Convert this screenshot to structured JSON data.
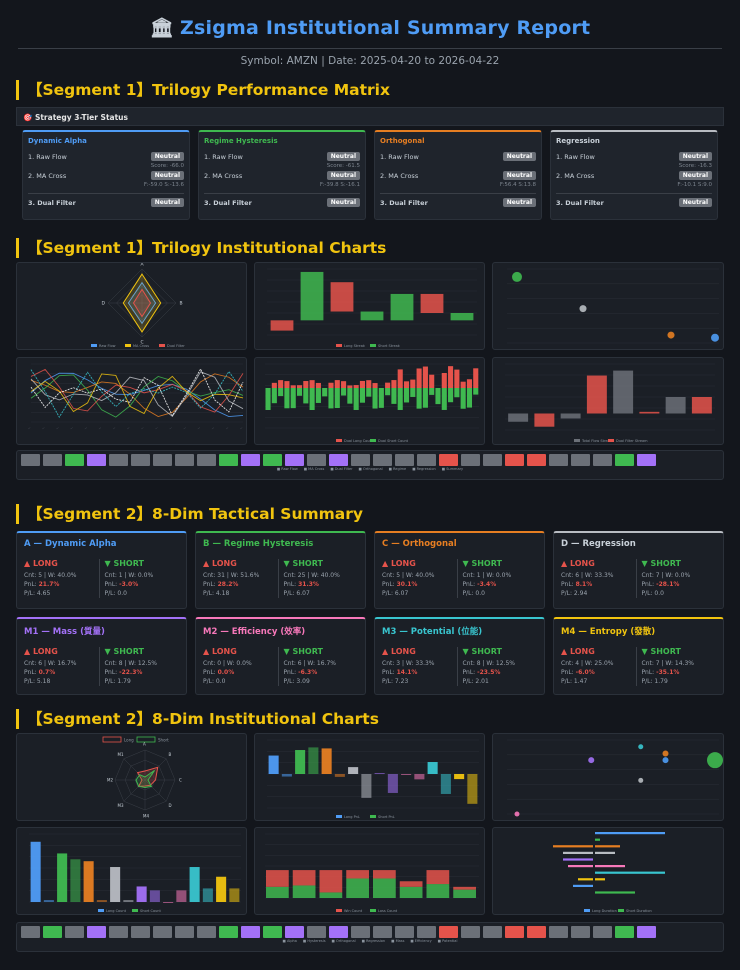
{
  "header": {
    "icon": "🏛",
    "title": "Zsigma Institutional Summary Report",
    "meta": "Symbol: AMZN | Date: 2025-04-20 to 2026-04-22"
  },
  "colors": {
    "background": "#13161c",
    "panel": "#1b1f26",
    "accent_title": "#4f9cf5",
    "segment_title": "#f1c40f",
    "long": "#e5534b",
    "short": "#3fb950",
    "neutral_badge": "#6b7078"
  },
  "seg1": {
    "title": "【Segment 1】Trilogy Performance Matrix",
    "status_bar": "🎯 Strategy 3-Tier Status",
    "tiers": [
      {
        "name": "Dynamic Alpha",
        "color": "#4f9cf5",
        "raw_label": "1. Raw Flow",
        "raw_status": "Neutral",
        "raw_sub": "Score: -66.0",
        "ma_label": "2. MA Cross",
        "ma_status": "Neutral",
        "ma_sub": "F:-59.0 S:-13.6",
        "dual_label": "3. Dual Filter",
        "dual_status": "Neutral"
      },
      {
        "name": "Regime Hysteresis",
        "color": "#3fb950",
        "raw_label": "1. Raw Flow",
        "raw_status": "Neutral",
        "raw_sub": "Score: -61.5",
        "ma_label": "2. MA Cross",
        "ma_status": "Neutral",
        "ma_sub": "F:-39.8 S:-16.1",
        "dual_label": "3. Dual Filter",
        "dual_status": "Neutral"
      },
      {
        "name": "Orthogonal",
        "color": "#e67e22",
        "raw_label": "1. Raw Flow",
        "raw_status": "Neutral",
        "raw_sub": "",
        "ma_label": "2. MA Cross",
        "ma_status": "Neutral",
        "ma_sub": "F:56.4 S:13.8",
        "dual_label": "3. Dual Filter",
        "dual_status": "Neutral"
      },
      {
        "name": "Regression",
        "color": "#b8bcc2",
        "raw_label": "1. Raw Flow",
        "raw_status": "Neutral",
        "raw_sub": "Score: -16.3",
        "ma_label": "2. MA Cross",
        "ma_status": "Neutral",
        "ma_sub": "F:-10.1 S:9.0",
        "dual_label": "3. Dual Filter",
        "dual_status": "Neutral"
      }
    ],
    "charts_title": "【Segment 1】Trilogy Institutional Charts"
  },
  "seg2": {
    "title": "【Segment 2】8-Dim Tactical Summary",
    "long_label": "▲ LONG",
    "short_label": "▼ SHORT",
    "cards": [
      {
        "name": "A — Dynamic Alpha",
        "color": "#4f9cf5",
        "long": {
          "cnt": "Cnt: 5 | W: 40.0%",
          "pnl": "21.7%",
          "pl": "P/L: 4.65"
        },
        "short": {
          "cnt": "Cnt: 1 | W: 0.0%",
          "pnl": "-3.0%",
          "pl": "P/L: 0.0"
        }
      },
      {
        "name": "B — Regime Hysteresis",
        "color": "#3fb950",
        "long": {
          "cnt": "Cnt: 31 | W: 51.6%",
          "pnl": "28.2%",
          "pl": "P/L: 4.18"
        },
        "short": {
          "cnt": "Cnt: 25 | W: 40.0%",
          "pnl": "31.3%",
          "pl": "P/L: 6.07"
        }
      },
      {
        "name": "C — Orthogonal",
        "color": "#e67e22",
        "long": {
          "cnt": "Cnt: 5 | W: 40.0%",
          "pnl": "30.1%",
          "pl": "P/L: 6.07"
        },
        "short": {
          "cnt": "Cnt: 1 | W: 0.0%",
          "pnl": "-3.4%",
          "pl": "P/L: 0.0"
        }
      },
      {
        "name": "D — Regression",
        "color": "#b8bcc2",
        "long": {
          "cnt": "Cnt: 6 | W: 33.3%",
          "pnl": "8.1%",
          "pl": "P/L: 2.94"
        },
        "short": {
          "cnt": "Cnt: 7 | W: 0.0%",
          "pnl": "-28.1%",
          "pl": "P/L: 0.0"
        }
      },
      {
        "name": "M1 — Mass (質量)",
        "color": "#a371f7",
        "long": {
          "cnt": "Cnt: 6 | W: 16.7%",
          "pnl": "0.7%",
          "pl": "P/L: 5.18"
        },
        "short": {
          "cnt": "Cnt: 8 | W: 12.5%",
          "pnl": "-22.3%",
          "pl": "P/L: 1.79"
        }
      },
      {
        "name": "M2 — Efficiency (效率)",
        "color": "#f778ba",
        "long": {
          "cnt": "Cnt: 0 | W: 0.0%",
          "pnl": "0.0%",
          "pl": "P/L: 0.0"
        },
        "short": {
          "cnt": "Cnt: 6 | W: 16.7%",
          "pnl": "-6.3%",
          "pl": "P/L: 3.09"
        }
      },
      {
        "name": "M3 — Potential (位能)",
        "color": "#39c5cf",
        "long": {
          "cnt": "Cnt: 3 | W: 33.3%",
          "pnl": "14.1%",
          "pl": "P/L: 7.23"
        },
        "short": {
          "cnt": "Cnt: 8 | W: 12.5%",
          "pnl": "-23.5%",
          "pl": "P/L: 2.01"
        }
      },
      {
        "name": "M4 — Entropy (發散)",
        "color": "#f1c40f",
        "long": {
          "cnt": "Cnt: 4 | W: 25.0%",
          "pnl": "-6.0%",
          "pl": "P/L: 1.47"
        },
        "short": {
          "cnt": "Cnt: 7 | W: 14.3%",
          "pnl": "-35.1%",
          "pl": "P/L: 1.79"
        }
      }
    ],
    "charts_title": "【Segment 2】8-Dim Institutional Charts"
  },
  "chart_data": [
    {
      "type": "radar",
      "axes": [
        "A",
        "B",
        "C",
        "D"
      ],
      "series": [
        {
          "name": "Raw Flow",
          "color": "#4f9cf5",
          "values": [
            60,
            40,
            60,
            40
          ]
        },
        {
          "name": "MA Cross",
          "color": "#f1c40f",
          "values": [
            85,
            55,
            85,
            55
          ]
        },
        {
          "name": "Dual Filter",
          "color": "#e5534b",
          "values": [
            40,
            25,
            40,
            25
          ]
        }
      ]
    },
    {
      "type": "bar",
      "legend": [
        "Long Streak",
        "Short Streak"
      ],
      "colors": [
        "#e5534b",
        "#3fb950"
      ],
      "ylim": [
        -1,
        3.5
      ],
      "bars": [
        {
          "from": 0,
          "to": -0.7,
          "color": "#e5534b"
        },
        {
          "from": 0,
          "to": 3.3,
          "color": "#3fb950"
        },
        {
          "from": 2.6,
          "to": 0.6,
          "color": "#e5534b"
        },
        {
          "from": 0.6,
          "to": 0,
          "color": "#3fb950"
        },
        {
          "from": 0,
          "to": 1.8,
          "color": "#3fb950"
        },
        {
          "from": 1.8,
          "to": 0.5,
          "color": "#e5534b"
        },
        {
          "from": 0.5,
          "to": 0,
          "color": "#3fb950"
        }
      ]
    },
    {
      "type": "scatter",
      "points": [
        {
          "x": 0,
          "y": 25,
          "r": 5,
          "color": "#3fb950"
        },
        {
          "x": 3,
          "y": 13,
          "r": 3.5,
          "color": "#b8bcc2"
        },
        {
          "x": 7,
          "y": 3,
          "r": 3.5,
          "color": "#e67e22"
        },
        {
          "x": 9,
          "y": 2,
          "r": 4,
          "color": "#4f9cf5"
        }
      ]
    },
    {
      "type": "line",
      "series_colors": [
        "#4f9cf5",
        "#e67e22",
        "#3fb950",
        "#e5534b",
        "#b8bcc2",
        "#f1c40f",
        "#39c5cf",
        "#ffffff"
      ]
    },
    {
      "type": "bar",
      "legend": [
        "Dual Long Count",
        "Dual Short Count"
      ],
      "colors": [
        "#e5534b",
        "#3fb950"
      ]
    },
    {
      "type": "bar",
      "legend": [
        "Total Flow Stream",
        "Dual Filter Stream"
      ],
      "colors": [
        "#6b7078",
        "#e5534b"
      ],
      "ylim": [
        -1,
        3
      ],
      "bars": [
        {
          "from": 0,
          "to": -0.5,
          "color": "#6b7078"
        },
        {
          "from": 0,
          "to": -0.8,
          "color": "#e5534b"
        },
        {
          "from": 0,
          "to": -0.3,
          "color": "#6b7078"
        },
        {
          "from": 2.3,
          "to": 0,
          "color": "#e5534b"
        },
        {
          "from": 2.6,
          "to": 0,
          "color": "#6b7078"
        },
        {
          "from": 0,
          "to": 0.1,
          "color": "#e5534b"
        },
        {
          "from": 1.0,
          "to": 0,
          "color": "#6b7078"
        },
        {
          "from": 1.0,
          "to": 0,
          "color": "#e5534b"
        }
      ]
    },
    {
      "type": "radar",
      "axes": [
        "A",
        "B",
        "C",
        "D",
        "M4",
        "M3",
        "M2",
        "M1"
      ],
      "legend": [
        "Long",
        "Short"
      ],
      "series": [
        {
          "name": "Long",
          "color": "#e5534b",
          "values": [
            30,
            60,
            35,
            25,
            20,
            30,
            10,
            35
          ]
        },
        {
          "name": "Short",
          "color": "#3fb950",
          "values": [
            10,
            45,
            10,
            30,
            25,
            30,
            30,
            25
          ]
        }
      ]
    },
    {
      "type": "bar",
      "legend": [
        "Long PnL",
        "Short PnL"
      ],
      "colors": [
        "#4f9cf5",
        "#e67e22"
      ],
      "ylim": [
        -40,
        40
      ],
      "bars": [
        {
          "v": 21.7,
          "color": "#4f9cf5"
        },
        {
          "v": -3.0,
          "color": "#4f9cf5"
        },
        {
          "v": 28.2,
          "color": "#3fb950"
        },
        {
          "v": 31.3,
          "color": "#3fb950"
        },
        {
          "v": 30.1,
          "color": "#e67e22"
        },
        {
          "v": -3.4,
          "color": "#e67e22"
        },
        {
          "v": 8.1,
          "color": "#b8bcc2"
        },
        {
          "v": -28.1,
          "color": "#b8bcc2"
        },
        {
          "v": 0.7,
          "color": "#a371f7"
        },
        {
          "v": -22.3,
          "color": "#a371f7"
        },
        {
          "v": 0.0,
          "color": "#f778ba"
        },
        {
          "v": -6.3,
          "color": "#f778ba"
        },
        {
          "v": 14.1,
          "color": "#39c5cf"
        },
        {
          "v": -23.5,
          "color": "#39c5cf"
        },
        {
          "v": -6.0,
          "color": "#f1c40f"
        },
        {
          "v": -35.1,
          "color": "#f1c40f"
        }
      ]
    },
    {
      "type": "scatter",
      "points": [
        {
          "x": 0,
          "y": 0,
          "r": 2.5,
          "color": "#f778ba"
        },
        {
          "x": 3,
          "y": 8,
          "r": 3,
          "color": "#a371f7"
        },
        {
          "x": 5,
          "y": 10,
          "r": 2.5,
          "color": "#39c5cf"
        },
        {
          "x": 5,
          "y": 5,
          "r": 2.5,
          "color": "#b8bcc2"
        },
        {
          "x": 6,
          "y": 8,
          "r": 3,
          "color": "#4f9cf5"
        },
        {
          "x": 6,
          "y": 9,
          "r": 3,
          "color": "#e67e22"
        },
        {
          "x": 8,
          "y": 8,
          "r": 8,
          "color": "#3fb950"
        }
      ]
    },
    {
      "type": "bar",
      "legend": [
        "Long Count",
        "Short Count"
      ],
      "ylim": [
        0,
        35
      ],
      "bars": [
        {
          "v": 31,
          "color": "#4f9cf5"
        },
        {
          "v": 1,
          "color": "#4f9cf5"
        },
        {
          "v": 25,
          "color": "#3fb950"
        },
        {
          "v": 22,
          "color": "#3fb950"
        },
        {
          "v": 21,
          "color": "#e67e22"
        },
        {
          "v": 1,
          "color": "#e67e22"
        },
        {
          "v": 18,
          "color": "#b8bcc2"
        },
        {
          "v": 1,
          "color": "#b8bcc2"
        },
        {
          "v": 8,
          "color": "#a371f7"
        },
        {
          "v": 6,
          "color": "#a371f7"
        },
        {
          "v": 0,
          "color": "#f778ba"
        },
        {
          "v": 6,
          "color": "#f778ba"
        },
        {
          "v": 18,
          "color": "#39c5cf"
        },
        {
          "v": 7,
          "color": "#39c5cf"
        },
        {
          "v": 13,
          "color": "#f1c40f"
        },
        {
          "v": 7,
          "color": "#f1c40f"
        }
      ]
    },
    {
      "type": "bar",
      "legend": [
        "Win Count",
        "Loss Count"
      ],
      "colors": [
        "#e5534b",
        "#3fb950"
      ],
      "bars": [
        {
          "win": 0.6,
          "loss": 0.4
        },
        {
          "win": 0.6,
          "loss": 0.4
        },
        {
          "win": 0.55,
          "loss": 0.45
        },
        {
          "win": 0,
          "loss": 0
        },
        {
          "win": 0.8,
          "loss": 0.2
        },
        {
          "win": 0.5,
          "loss": 0.5
        },
        {
          "win": 0.3,
          "loss": 0.7
        },
        {
          "win": 0.1,
          "loss": 0.3
        },
        {
          "win": 0.3,
          "loss": 0.7
        },
        {
          "win": 0.2,
          "loss": 0.4
        },
        {
          "win": 0.2,
          "loss": 0.4
        },
        {
          "win": 0.3,
          "loss": 0.3
        },
        {
          "win": 0.5,
          "loss": 0.5
        },
        {
          "win": 0.2,
          "loss": 0.2
        },
        {
          "win": 0.1,
          "loss": 0.3
        },
        {
          "win": 0.3,
          "loss": 0.7
        }
      ]
    },
    {
      "type": "bar",
      "orientation": "horizontal",
      "legend": [
        "Long Duration",
        "Short Duration"
      ]
    }
  ],
  "strip1": {
    "swatches": [
      "#6b7078",
      "#6b7078",
      "#3fb950",
      "#a371f7",
      "#6b7078",
      "#6b7078",
      "#6b7078",
      "#6b7078",
      "#6b7078",
      "#3fb950",
      "#a371f7",
      "#3fb950",
      "#a371f7",
      "#6b7078",
      "#a371f7",
      "#6b7078",
      "#6b7078",
      "#6b7078",
      "#6b7078",
      "#e5534b",
      "#6b7078",
      "#6b7078",
      "#e5534b",
      "#e5534b",
      "#6b7078",
      "#6b7078",
      "#6b7078",
      "#3fb950",
      "#a371f7"
    ],
    "legend": [
      "Raw Flow",
      "MA Cross",
      "Dual Filter",
      "Orthogonal",
      "Regime",
      "Regression",
      "Summary"
    ]
  },
  "strip2": {
    "swatches": [
      "#6b7078",
      "#3fb950",
      "#6b7078",
      "#a371f7",
      "#6b7078",
      "#6b7078",
      "#6b7078",
      "#6b7078",
      "#6b7078",
      "#3fb950",
      "#a371f7",
      "#3fb950",
      "#a371f7",
      "#6b7078",
      "#a371f7",
      "#6b7078",
      "#6b7078",
      "#6b7078",
      "#6b7078",
      "#e5534b",
      "#6b7078",
      "#6b7078",
      "#e5534b",
      "#e5534b",
      "#6b7078",
      "#6b7078",
      "#6b7078",
      "#3fb950",
      "#a371f7"
    ],
    "legend": [
      "Alpha",
      "Hysteresis",
      "Orthogonal",
      "Regression",
      "Mass",
      "Efficiency",
      "Potential"
    ]
  }
}
